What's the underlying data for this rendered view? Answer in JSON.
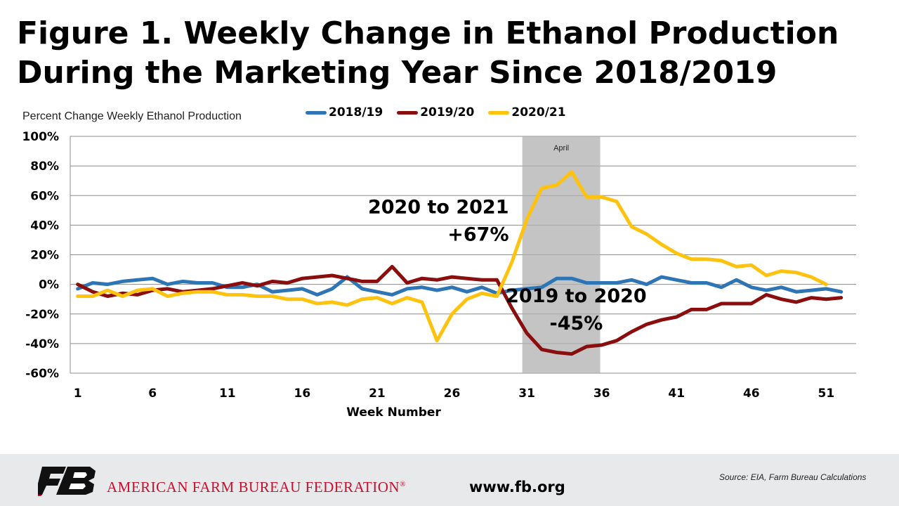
{
  "title_line1": "Figure 1. Weekly Change in Ethanol Production",
  "title_line2": "During the Marketing Year Since 2018/2019",
  "footer": {
    "org_name": "AMERICAN FARM BUREAU FEDERATION",
    "org_mark": "®",
    "website": "www.fb.org",
    "source": "Source: EIA, Farm Bureau Calculations"
  },
  "chart_data": {
    "type": "line",
    "ylabel": "Percent Change Weekly Ethanol Production",
    "xlabel": "Week Number",
    "x_ticks": [
      1,
      6,
      11,
      16,
      21,
      26,
      31,
      36,
      41,
      46,
      51
    ],
    "y_ticks": [
      "100%",
      "80%",
      "60%",
      "40%",
      "20%",
      "0%",
      "-20%",
      "-40%",
      "-60%"
    ],
    "ylim": [
      -60,
      100
    ],
    "xlim": [
      0.5,
      53
    ],
    "grid": true,
    "legend_position": "top",
    "shaded_region": {
      "from": 30.7,
      "to": 35.9,
      "label": "April",
      "color": "#b0b0b0"
    },
    "annotations": [
      {
        "lines": [
          "2020 to 2021",
          "+67%"
        ],
        "align": "right",
        "x": 29.8,
        "y": 48
      },
      {
        "lines": [
          "2019 to 2020",
          "-45%"
        ],
        "align": "center",
        "x": 34.3,
        "y": -12
      }
    ],
    "series": [
      {
        "name": "2018/19",
        "color": "#2e75b6",
        "weeks": [
          1,
          2,
          3,
          4,
          5,
          6,
          7,
          8,
          9,
          10,
          11,
          12,
          13,
          14,
          15,
          16,
          17,
          18,
          19,
          20,
          21,
          22,
          23,
          24,
          25,
          26,
          27,
          28,
          29,
          30,
          31,
          32,
          33,
          34,
          35,
          36,
          37,
          38,
          39,
          40,
          41,
          42,
          43,
          44,
          45,
          46,
          47,
          48,
          49,
          50,
          51,
          52
        ],
        "values": [
          -3,
          1,
          0,
          2,
          3,
          4,
          0,
          2,
          1,
          1,
          -2,
          -2,
          0,
          -5,
          -4,
          -3,
          -7,
          -3,
          5,
          -3,
          -5,
          -7,
          -3,
          -2,
          -4,
          -2,
          -5,
          -2,
          -6,
          -4,
          -3,
          -2,
          4,
          4,
          1,
          1,
          1,
          3,
          0,
          5,
          3,
          1,
          1,
          -2,
          3,
          -2,
          -4,
          -2,
          -5,
          -4,
          -3,
          -5
        ]
      },
      {
        "name": "2019/20",
        "color": "#8b0e0e",
        "weeks": [
          1,
          2,
          3,
          4,
          5,
          6,
          7,
          8,
          9,
          10,
          11,
          12,
          13,
          14,
          15,
          16,
          17,
          18,
          19,
          20,
          21,
          22,
          23,
          24,
          25,
          26,
          27,
          28,
          29,
          30,
          31,
          32,
          33,
          34,
          35,
          36,
          37,
          38,
          39,
          40,
          41,
          42,
          43,
          44,
          45,
          46,
          47,
          48,
          49,
          50,
          51,
          52
        ],
        "values": [
          0,
          -5,
          -8,
          -6,
          -7,
          -4,
          -3,
          -5,
          -4,
          -3,
          -1,
          1,
          -1,
          2,
          1,
          4,
          5,
          6,
          4,
          2,
          2,
          12,
          1,
          4,
          3,
          5,
          4,
          3,
          3,
          -16,
          -33,
          -44,
          -46,
          -47,
          -42,
          -41,
          -38,
          -32,
          -27,
          -24,
          -22,
          -17,
          -17,
          -13,
          -13,
          -13,
          -7,
          -10,
          -12,
          -9,
          -10,
          -9
        ]
      },
      {
        "name": "2020/21",
        "color": "#ffc20e",
        "weeks": [
          1,
          2,
          3,
          4,
          5,
          6,
          7,
          8,
          9,
          10,
          11,
          12,
          13,
          14,
          15,
          16,
          17,
          18,
          19,
          20,
          21,
          22,
          23,
          24,
          25,
          26,
          27,
          28,
          29,
          30,
          31,
          32,
          33,
          34,
          35,
          36,
          37,
          38,
          39,
          40,
          41,
          42,
          43,
          44,
          45,
          46,
          47,
          48,
          49,
          50,
          51
        ],
        "values": [
          -8,
          -8,
          -4,
          -8,
          -4,
          -3,
          -8,
          -6,
          -5,
          -5,
          -7,
          -7,
          -8,
          -8,
          -10,
          -10,
          -13,
          -12,
          -14,
          -10,
          -9,
          -13,
          -9,
          -12,
          -38,
          -20,
          -10,
          -6,
          -8,
          15,
          44,
          65,
          67,
          76,
          59,
          59,
          56,
          39,
          34,
          27,
          21,
          17,
          17,
          16,
          12,
          13,
          6,
          9,
          8,
          5,
          0
        ]
      }
    ]
  }
}
